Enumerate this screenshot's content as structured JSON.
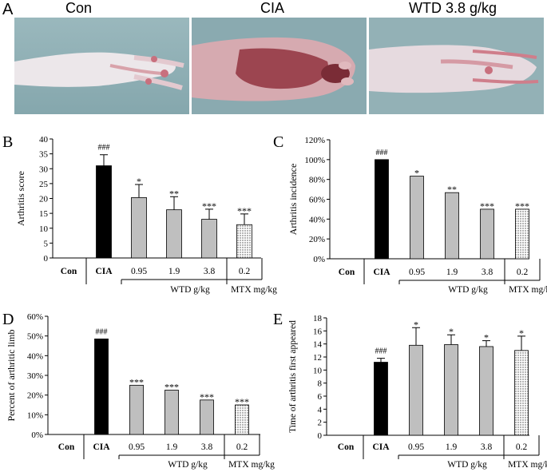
{
  "panel_a": {
    "letter": "A",
    "labels": [
      "Con",
      "CIA",
      "WTD  3.8 g/kg"
    ],
    "colors": {
      "background": "#8fb0b5",
      "paw_light": "#e9e4e8",
      "paw_pink": "#d49aa3",
      "paw_red": "#8c3a44",
      "toe": "#c85a6a"
    }
  },
  "chart_data": [
    {
      "letter": "B",
      "type": "bar",
      "ylabel": "Arthritis score",
      "categories": [
        "Con",
        "CIA",
        "0.95",
        "1.9",
        "3.8",
        "0.2"
      ],
      "values": [
        0,
        31,
        20.3,
        16.2,
        13,
        11.2
      ],
      "errors": [
        0,
        3.7,
        4.4,
        4.4,
        3.4,
        3.6
      ],
      "significance": [
        "",
        "###",
        "*",
        "**",
        "***",
        "***"
      ],
      "ylim": [
        0,
        40
      ],
      "yticks": [
        0,
        5,
        10,
        15,
        20,
        25,
        30,
        35,
        40
      ],
      "ytick_labels": [
        "0",
        "5",
        "10",
        "15",
        "20",
        "25",
        "30",
        "35",
        "40"
      ],
      "styles": [
        "none",
        "black",
        "gray",
        "gray",
        "gray",
        "dots"
      ],
      "group_labels": [
        "WTD g/kg",
        "MTX mg/kg"
      ]
    },
    {
      "letter": "C",
      "type": "bar",
      "ylabel": "Arthritis incidence",
      "categories": [
        "Con",
        "CIA",
        "0.95",
        "1.9",
        "3.8",
        "0.2"
      ],
      "values": [
        0,
        100,
        83.3,
        66.7,
        50,
        50
      ],
      "errors": [
        0,
        0,
        0,
        0,
        0,
        0
      ],
      "significance": [
        "",
        "###",
        "*",
        "**",
        "***",
        "***"
      ],
      "ylim": [
        0,
        120
      ],
      "yticks": [
        0,
        20,
        40,
        60,
        80,
        100,
        120
      ],
      "ytick_labels": [
        "0%",
        "20%",
        "40%",
        "60%",
        "80%",
        "100%",
        "120%"
      ],
      "styles": [
        "none",
        "black",
        "gray",
        "gray",
        "gray",
        "dots"
      ],
      "group_labels": [
        "WTD g/kg",
        "MTX mg/kg"
      ]
    },
    {
      "letter": "D",
      "type": "bar",
      "ylabel": "Percent of arthritic limb",
      "categories": [
        "Con",
        "CIA",
        "0.95",
        "1.9",
        "3.8",
        "0.2"
      ],
      "values": [
        0,
        48.5,
        25,
        22.5,
        17.5,
        15
      ],
      "errors": [
        0,
        0,
        0,
        0,
        0,
        0
      ],
      "significance": [
        "",
        "###",
        "***",
        "***",
        "***",
        "***"
      ],
      "ylim": [
        0,
        60
      ],
      "yticks": [
        0,
        10,
        20,
        30,
        40,
        50,
        60
      ],
      "ytick_labels": [
        "0%",
        "10%",
        "20%",
        "30%",
        "40%",
        "50%",
        "60%"
      ],
      "styles": [
        "none",
        "black",
        "gray",
        "gray",
        "gray",
        "dots"
      ],
      "group_labels": [
        "WTD g/kg",
        "MTX mg/kg"
      ]
    },
    {
      "letter": "E",
      "type": "bar",
      "ylabel": "Time of arthritis first appeared",
      "categories": [
        "Con",
        "CIA",
        "0.95",
        "1.9",
        "3.8",
        "0.2"
      ],
      "values": [
        0,
        11.2,
        13.8,
        13.9,
        13.6,
        13
      ],
      "errors": [
        0,
        0.6,
        2.7,
        1.5,
        0.9,
        2.2
      ],
      "significance": [
        "",
        "###",
        "*",
        "*",
        "*",
        "*"
      ],
      "ylim": [
        0,
        18
      ],
      "yticks": [
        0,
        2,
        4,
        6,
        8,
        10,
        12,
        14,
        16,
        18
      ],
      "ytick_labels": [
        "0",
        "2",
        "4",
        "6",
        "8",
        "10",
        "12",
        "14",
        "16",
        "18"
      ],
      "styles": [
        "none",
        "black",
        "gray",
        "gray",
        "gray",
        "dots"
      ],
      "group_labels": [
        "WTD g/kg",
        "MTX mg/kg"
      ]
    }
  ],
  "colors": {
    "black_bar": "#000000",
    "gray_bar": "#bfbfbf",
    "dot_bar": "#e8e8e8",
    "axis": "#000000"
  }
}
